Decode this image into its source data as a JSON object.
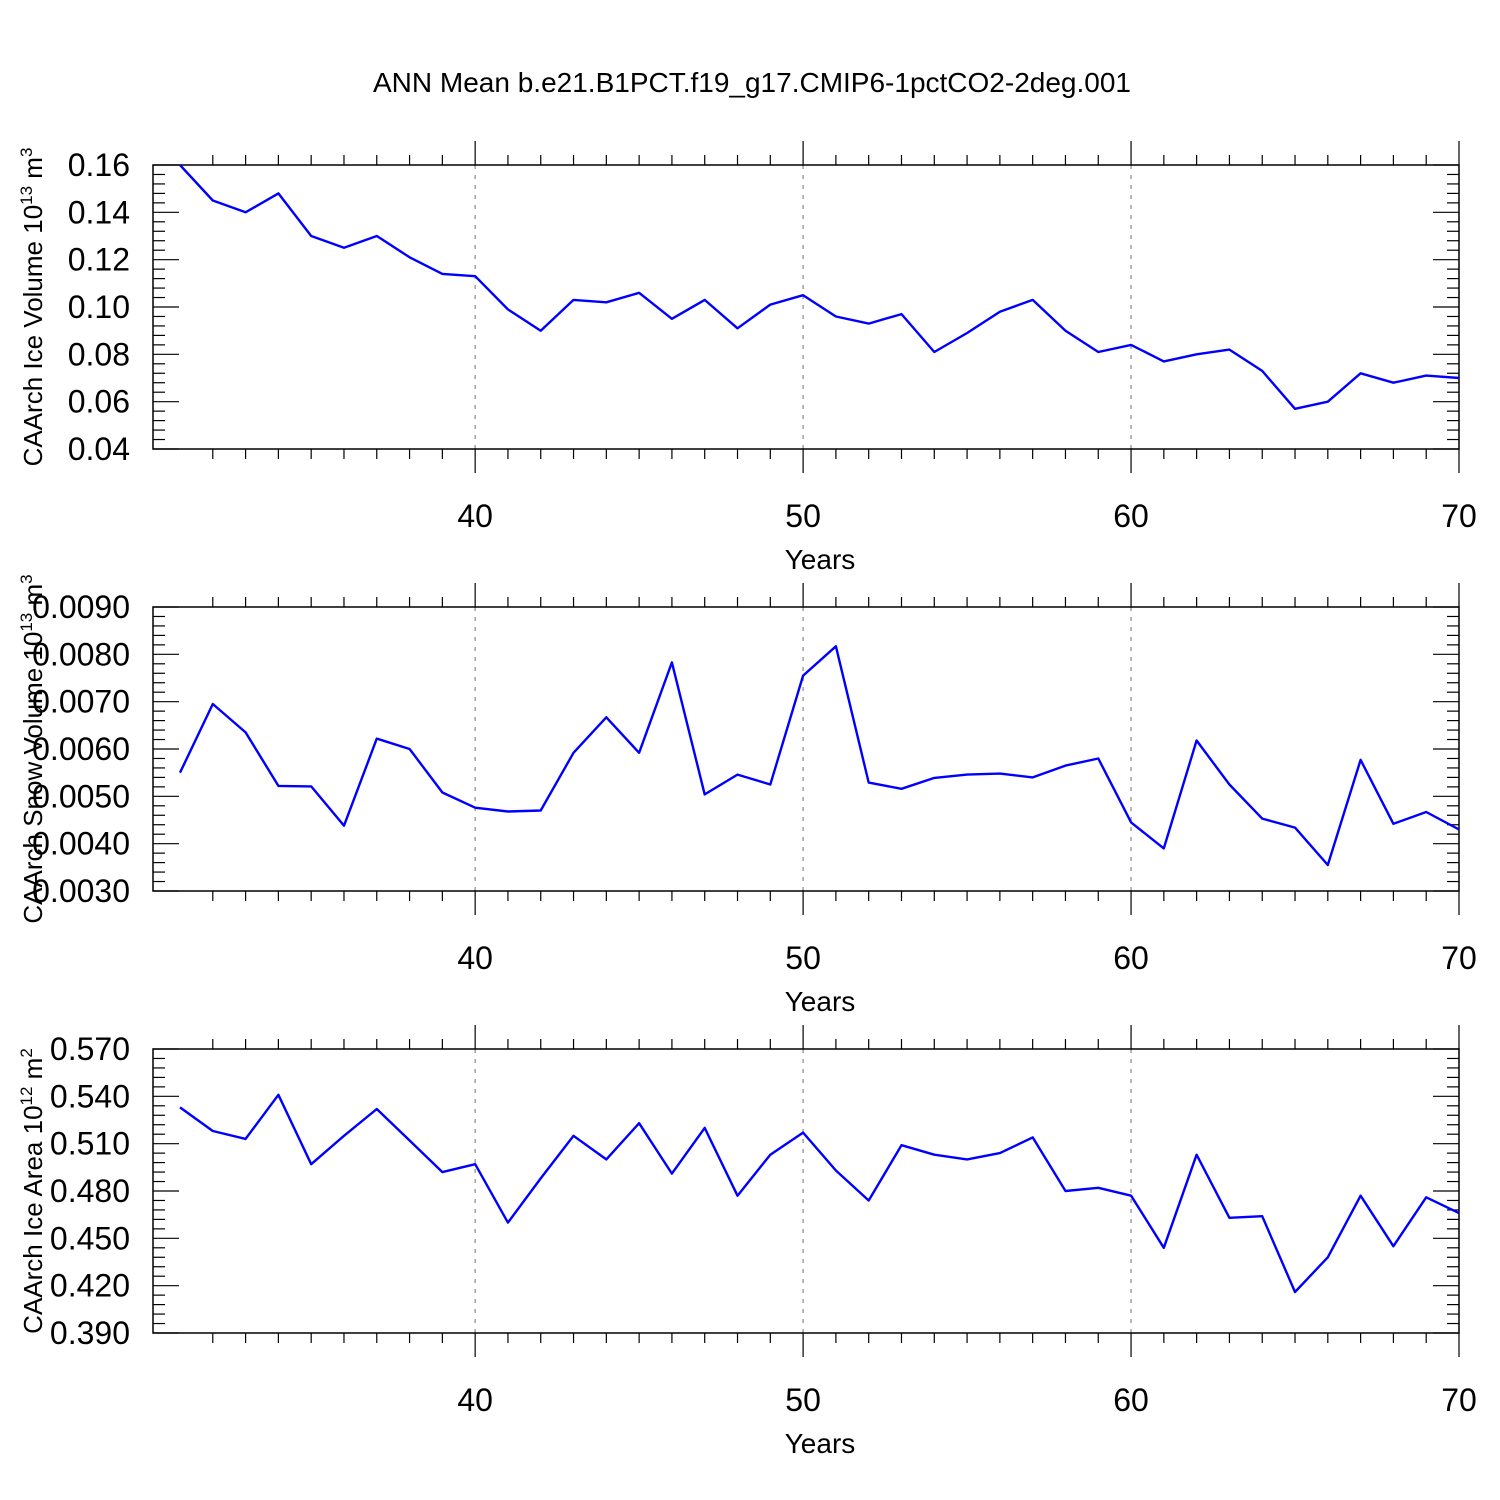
{
  "title": "ANN Mean b.e21.B1PCT.f19_g17.CMIP6-1pctCO2-2deg.001",
  "chart_data": [
    {
      "type": "line",
      "title": "ANN Mean b.e21.B1PCT.f19_g17.CMIP6-1pctCO2-2deg.001",
      "xlabel": "Years",
      "ylabel": {
        "text": "CAArch Ice Volume 10",
        "sup": "13",
        "unit": " m",
        "unit_sup": "3"
      },
      "xlim": [
        31,
        70
      ],
      "xticks": [
        40,
        50,
        60,
        70
      ],
      "xtick_labels": [
        "40",
        "50",
        "60",
        "70"
      ],
      "ylim": [
        0.04,
        0.16
      ],
      "yticks": [
        0.04,
        0.06,
        0.08,
        0.1,
        0.12,
        0.14,
        0.16
      ],
      "ytick_labels": [
        "0.04",
        "0.06",
        "0.08",
        "0.10",
        "0.12",
        "0.14",
        "0.16"
      ],
      "grid_x": [
        40,
        50,
        60
      ],
      "series": [
        {
          "name": "CAArch Ice Volume",
          "color": "#0000ff",
          "x": [
            31,
            32,
            33,
            34,
            35,
            36,
            37,
            38,
            39,
            40,
            41,
            42,
            43,
            44,
            45,
            46,
            47,
            48,
            49,
            50,
            51,
            52,
            53,
            54,
            55,
            56,
            57,
            58,
            59,
            60,
            61,
            62,
            63,
            64,
            65,
            66,
            67,
            68,
            69,
            70
          ],
          "values": [
            0.16,
            0.145,
            0.14,
            0.148,
            0.13,
            0.125,
            0.13,
            0.121,
            0.114,
            0.113,
            0.099,
            0.09,
            0.103,
            0.102,
            0.106,
            0.095,
            0.103,
            0.091,
            0.101,
            0.105,
            0.096,
            0.093,
            0.097,
            0.081,
            0.089,
            0.098,
            0.103,
            0.09,
            0.081,
            0.084,
            0.077,
            0.08,
            0.082,
            0.073,
            0.057,
            0.06,
            0.072,
            0.068,
            0.071,
            0.07
          ]
        }
      ]
    },
    {
      "type": "line",
      "xlabel": "Years",
      "ylabel": {
        "text": "CAArch Snow Volume 10",
        "sup": "13",
        "unit": " m",
        "unit_sup": "3"
      },
      "xlim": [
        31,
        70
      ],
      "xticks": [
        40,
        50,
        60,
        70
      ],
      "xtick_labels": [
        "40",
        "50",
        "60",
        "70"
      ],
      "ylim": [
        0.003,
        0.009
      ],
      "yticks": [
        0.003,
        0.004,
        0.005,
        0.006,
        0.007,
        0.008,
        0.009
      ],
      "ytick_labels": [
        "0.0030",
        "0.0040",
        "0.0050",
        "0.0060",
        "0.0070",
        "0.0080",
        "0.0090"
      ],
      "grid_x": [
        40,
        50,
        60
      ],
      "series": [
        {
          "name": "CAArch Snow Volume",
          "color": "#0000ff",
          "x": [
            31,
            32,
            33,
            34,
            35,
            36,
            37,
            38,
            39,
            40,
            41,
            42,
            43,
            44,
            45,
            46,
            47,
            48,
            49,
            50,
            51,
            52,
            53,
            54,
            55,
            56,
            57,
            58,
            59,
            60,
            61,
            62,
            63,
            64,
            65,
            66,
            67,
            68,
            69,
            70
          ],
          "values": [
            0.0055,
            0.00695,
            0.00635,
            0.00522,
            0.00521,
            0.00438,
            0.00622,
            0.006,
            0.00508,
            0.00476,
            0.00468,
            0.0047,
            0.00592,
            0.00667,
            0.00592,
            0.00783,
            0.00504,
            0.00546,
            0.00525,
            0.00755,
            0.00817,
            0.00529,
            0.00516,
            0.00539,
            0.00546,
            0.00548,
            0.0054,
            0.00565,
            0.0058,
            0.00445,
            0.0039,
            0.00618,
            0.00525,
            0.00453,
            0.00434,
            0.00355,
            0.00577,
            0.00442,
            0.00467,
            0.0043
          ]
        }
      ]
    },
    {
      "type": "line",
      "xlabel": "Years",
      "ylabel": {
        "text": "CAArch Ice Area 10",
        "sup": "12",
        "unit": " m",
        "unit_sup": "2"
      },
      "xlim": [
        31,
        70
      ],
      "xticks": [
        40,
        50,
        60,
        70
      ],
      "xtick_labels": [
        "40",
        "50",
        "60",
        "70"
      ],
      "ylim": [
        0.39,
        0.57
      ],
      "yticks": [
        0.39,
        0.42,
        0.45,
        0.48,
        0.51,
        0.54,
        0.57
      ],
      "ytick_labels": [
        "0.390",
        "0.420",
        "0.450",
        "0.480",
        "0.510",
        "0.540",
        "0.570"
      ],
      "grid_x": [
        40,
        50,
        60
      ],
      "series": [
        {
          "name": "CAArch Ice Area",
          "color": "#0000ff",
          "x": [
            31,
            32,
            33,
            34,
            35,
            36,
            37,
            38,
            39,
            40,
            41,
            42,
            43,
            44,
            45,
            46,
            47,
            48,
            49,
            50,
            51,
            52,
            53,
            54,
            55,
            56,
            57,
            58,
            59,
            60,
            61,
            62,
            63,
            64,
            65,
            66,
            67,
            68,
            69,
            70
          ],
          "values": [
            0.533,
            0.518,
            0.513,
            0.541,
            0.497,
            0.515,
            0.532,
            0.512,
            0.492,
            0.497,
            0.46,
            0.488,
            0.515,
            0.5,
            0.523,
            0.491,
            0.52,
            0.477,
            0.503,
            0.517,
            0.493,
            0.474,
            0.509,
            0.503,
            0.5,
            0.504,
            0.514,
            0.48,
            0.482,
            0.477,
            0.444,
            0.503,
            0.463,
            0.464,
            0.416,
            0.438,
            0.477,
            0.445,
            0.476,
            0.466
          ]
        }
      ]
    }
  ]
}
